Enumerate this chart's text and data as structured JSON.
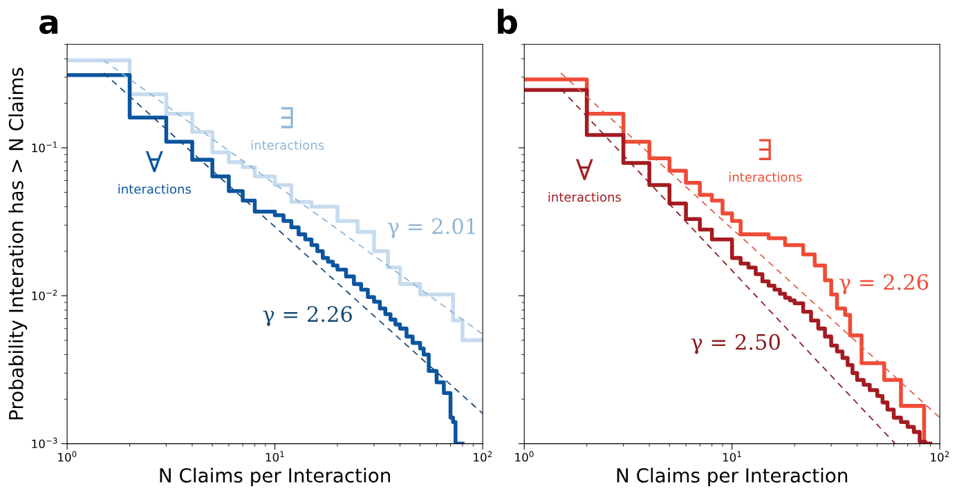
{
  "chart_data": [
    {
      "type": "step",
      "xlabel": "N Claims per Interaction",
      "ylabel": "Probability Interation has > N Claims",
      "log": "xy",
      "grid": false,
      "xlim": [
        1,
        100
      ],
      "xticks": [
        {
          "value": 1,
          "label": "10$^{0}$"
        },
        {
          "value": 10,
          "label": "10$^{1}$"
        },
        {
          "value": 100,
          "label": "10$^{2}$"
        }
      ],
      "ylim": [
        0.001,
        0.5
      ],
      "yticks": [
        {
          "value": 0.001,
          "label": "10$^{−3}$"
        },
        {
          "value": 0.01,
          "label": "10$^{−2}$"
        },
        {
          "value": 0.1,
          "label": "10$^{−1}$"
        }
      ],
      "series": [
        {
          "color": "#c6dbef",
          "x": [
            1,
            2,
            3,
            4,
            5,
            6,
            7,
            8,
            10,
            12,
            15,
            20,
            25,
            30,
            35,
            40,
            50,
            70,
            72,
            80,
            100
          ],
          "values": [
            0.39,
            0.23,
            0.17,
            0.128,
            0.093,
            0.08,
            0.074,
            0.064,
            0.056,
            0.043,
            0.04,
            0.032,
            0.027,
            0.02,
            0.0155,
            0.012,
            0.0102,
            0.0102,
            0.0068,
            0.005,
            0.005
          ]
        },
        {
          "color": "#0b559f",
          "x": [
            1,
            2,
            3,
            4,
            5,
            6,
            7,
            8,
            10,
            11,
            12,
            13,
            14,
            15,
            16,
            17,
            18,
            19,
            20,
            22,
            24,
            26,
            28,
            30,
            32,
            34,
            36,
            38,
            40,
            43,
            46,
            50,
            52,
            55,
            60,
            65,
            70,
            72,
            74,
            80
          ],
          "values": [
            0.31,
            0.16,
            0.11,
            0.083,
            0.064,
            0.051,
            0.044,
            0.037,
            0.035,
            0.032,
            0.029,
            0.026,
            0.024,
            0.022,
            0.02,
            0.018,
            0.017,
            0.016,
            0.015,
            0.0135,
            0.012,
            0.011,
            0.0098,
            0.0091,
            0.0082,
            0.0075,
            0.0069,
            0.0064,
            0.006,
            0.0053,
            0.0048,
            0.0044,
            0.004,
            0.0031,
            0.0026,
            0.0022,
            0.0015,
            0.0014,
            0.001,
            0.001
          ]
        },
        {
          "type": "line",
          "line_style": "dashed",
          "color": "#8fb6d6",
          "x": [
            1.5,
            100
          ],
          "values": [
            0.39,
            0.0055
          ]
        },
        {
          "type": "line",
          "line_style": "dashed",
          "color": "#1a4a75",
          "x": [
            1.5,
            100
          ],
          "values": [
            0.32,
            0.0016
          ]
        }
      ],
      "annotations": [
        "a",
        "∃",
        "interactions",
        "∀",
        "interactions",
        "γ = 2.01",
        "γ = 2.26"
      ]
    },
    {
      "type": "step",
      "xlabel": "N Claims per Interaction",
      "log": "xy",
      "grid": false,
      "tick_labels": "x",
      "xlim": [
        1,
        100
      ],
      "xticks": [
        {
          "value": 1,
          "label": "10$^{0}$"
        },
        {
          "value": 10,
          "label": "10$^{1}$"
        },
        {
          "value": 100,
          "label": "10$^{2}$"
        }
      ],
      "ylim": [
        0.001,
        0.5
      ],
      "yticks": [
        {
          "value": 0.001,
          "label": null
        },
        {
          "value": 0.01,
          "label": null
        },
        {
          "value": 0.1,
          "label": null
        }
      ],
      "series": [
        {
          "color": "#ef4b36",
          "x": [
            1,
            2,
            3,
            4,
            5,
            6,
            7,
            8,
            9,
            10,
            11,
            15,
            18,
            22,
            25,
            28,
            30,
            32,
            35,
            37,
            42,
            54,
            65,
            84,
            90
          ],
          "values": [
            0.29,
            0.17,
            0.11,
            0.085,
            0.07,
            0.058,
            0.048,
            0.044,
            0.036,
            0.032,
            0.026,
            0.0245,
            0.022,
            0.019,
            0.016,
            0.0127,
            0.0102,
            0.0082,
            0.0074,
            0.0054,
            0.0035,
            0.0027,
            0.0018,
            0.001,
            0.001
          ]
        },
        {
          "color": "#a41b21",
          "x": [
            1,
            2,
            3,
            4,
            5,
            6,
            7,
            8,
            10,
            11,
            12,
            13,
            14,
            15,
            16,
            17,
            18,
            19,
            20,
            22,
            24,
            26,
            28,
            30,
            32,
            34,
            36,
            38,
            40,
            43,
            46,
            50,
            53,
            56,
            60,
            65,
            70,
            75,
            80,
            85,
            90
          ],
          "values": [
            0.246,
            0.122,
            0.079,
            0.056,
            0.042,
            0.033,
            0.028,
            0.024,
            0.018,
            0.0165,
            0.0155,
            0.014,
            0.0125,
            0.0117,
            0.011,
            0.0103,
            0.0097,
            0.0093,
            0.0089,
            0.0078,
            0.0068,
            0.006,
            0.0053,
            0.0046,
            0.0042,
            0.0038,
            0.0034,
            0.003,
            0.0027,
            0.0025,
            0.0023,
            0.0021,
            0.0019,
            0.0017,
            0.0015,
            0.0014,
            0.0013,
            0.0012,
            0.00103,
            0.001,
            0.001
          ]
        },
        {
          "type": "line",
          "line_style": "dashed",
          "color": "#e0604b",
          "x": [
            1.5,
            100
          ],
          "values": [
            0.32,
            0.0015
          ]
        },
        {
          "type": "line",
          "line_style": "dashed",
          "color": "#8b1a1a",
          "x": [
            1.5,
            61
          ],
          "values": [
            0.25,
            0.001
          ]
        }
      ],
      "annotations": [
        "b",
        "∃",
        "interactions",
        "∀",
        "interactions",
        "γ = 2.26",
        "γ = 2.50"
      ]
    }
  ]
}
